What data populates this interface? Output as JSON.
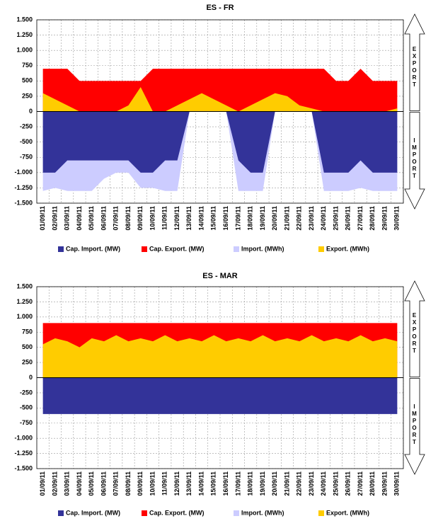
{
  "chart_data": [
    {
      "type": "area",
      "title": "ES - FR",
      "side_labels": [
        "EXPORT",
        "IMPORT"
      ],
      "grid": true,
      "categories": [
        "01/09/11",
        "02/09/11",
        "03/09/11",
        "04/09/11",
        "05/09/11",
        "06/09/11",
        "07/09/11",
        "08/09/11",
        "09/09/11",
        "10/09/11",
        "11/09/11",
        "12/09/11",
        "13/09/11",
        "14/09/11",
        "15/09/11",
        "16/09/11",
        "17/09/11",
        "18/09/11",
        "19/09/11",
        "20/09/11",
        "21/09/11",
        "22/09/11",
        "23/09/11",
        "24/09/11",
        "25/09/11",
        "26/09/11",
        "27/09/11",
        "28/09/11",
        "29/09/11",
        "30/09/11"
      ],
      "ylim": [
        -1500,
        1500
      ],
      "yticks": [
        {
          "value": -1500,
          "label": "-1.500"
        },
        {
          "value": -1250,
          "label": "-1.250"
        },
        {
          "value": -1000,
          "label": "-1.000"
        },
        -750,
        -500,
        -250,
        0,
        250,
        500,
        750,
        {
          "value": 1000,
          "label": "1.000"
        },
        {
          "value": 1250,
          "label": "1.250"
        },
        {
          "value": 1500,
          "label": "1.500"
        }
      ],
      "series": [
        {
          "name": "Cap. Import. (MW)",
          "color": "#333399",
          "values": [
            -1000,
            -1000,
            -800,
            -800,
            -800,
            -800,
            -800,
            -800,
            -1000,
            -1000,
            -800,
            -800,
            0,
            0,
            0,
            0,
            -800,
            -1000,
            -1000,
            0,
            0,
            0,
            0,
            -1000,
            -1000,
            -1000,
            -800,
            -1000,
            -1000,
            -1000
          ]
        },
        {
          "name": "Cap. Export. (MW)",
          "color": "#ff0000",
          "values": [
            700,
            700,
            700,
            500,
            500,
            500,
            500,
            500,
            500,
            700,
            700,
            700,
            700,
            700,
            700,
            700,
            700,
            700,
            700,
            700,
            700,
            700,
            700,
            700,
            500,
            500,
            700,
            500,
            500,
            500
          ]
        },
        {
          "name": "Import. (MWh)",
          "color": "#ccccff",
          "values": [
            -1300,
            -1250,
            -1300,
            -1300,
            -1300,
            -1100,
            -1000,
            -1000,
            -1250,
            -1250,
            -1300,
            -1300,
            0,
            0,
            0,
            0,
            -1300,
            -1300,
            -1300,
            0,
            0,
            0,
            0,
            -1300,
            -1300,
            -1300,
            -1250,
            -1300,
            -1300,
            -1300
          ]
        },
        {
          "name": "Export. (MWh)",
          "color": "#ffcc00",
          "values": [
            300,
            200,
            100,
            0,
            0,
            0,
            0,
            100,
            400,
            0,
            0,
            100,
            200,
            300,
            200,
            100,
            0,
            100,
            200,
            300,
            250,
            100,
            50,
            0,
            0,
            0,
            0,
            0,
            0,
            50
          ]
        }
      ]
    },
    {
      "type": "area",
      "title": "ES - MAR",
      "side_labels": [
        "EXPORT",
        "IMPORT"
      ],
      "grid": true,
      "categories": [
        "01/09/11",
        "02/09/11",
        "03/09/11",
        "04/09/11",
        "05/09/11",
        "06/09/11",
        "07/09/11",
        "08/09/11",
        "09/09/11",
        "10/09/11",
        "11/09/11",
        "12/09/11",
        "13/09/11",
        "14/09/11",
        "15/09/11",
        "16/09/11",
        "17/09/11",
        "18/09/11",
        "19/09/11",
        "20/09/11",
        "21/09/11",
        "22/09/11",
        "23/09/11",
        "24/09/11",
        "25/09/11",
        "26/09/11",
        "27/09/11",
        "28/09/11",
        "29/09/11",
        "30/09/11"
      ],
      "ylim": [
        -1500,
        1500
      ],
      "yticks": [
        {
          "value": -1500,
          "label": "-1.500"
        },
        {
          "value": -1250,
          "label": "-1.250"
        },
        {
          "value": -1000,
          "label": "-1.000"
        },
        -750,
        -500,
        -250,
        0,
        250,
        500,
        750,
        {
          "value": 1000,
          "label": "1.000"
        },
        {
          "value": 1250,
          "label": "1.250"
        },
        {
          "value": 1500,
          "label": "1.500"
        }
      ],
      "series": [
        {
          "name": "Cap. Import. (MW)",
          "color": "#333399",
          "values": [
            -600,
            -600,
            -600,
            -600,
            -600,
            -600,
            -600,
            -600,
            -600,
            -600,
            -600,
            -600,
            -600,
            -600,
            -600,
            -600,
            -600,
            -600,
            -600,
            -600,
            -600,
            -600,
            -600,
            -600,
            -600,
            -600,
            -600,
            -600,
            -600,
            -600
          ]
        },
        {
          "name": "Cap. Export. (MW)",
          "color": "#ff0000",
          "values": [
            900,
            900,
            900,
            900,
            900,
            900,
            900,
            900,
            900,
            900,
            900,
            900,
            900,
            900,
            900,
            900,
            900,
            900,
            900,
            900,
            900,
            900,
            900,
            900,
            900,
            900,
            900,
            900,
            900,
            900
          ]
        },
        {
          "name": "Import. (MWh)",
          "color": "#ccccff",
          "values": [
            0,
            0,
            0,
            0,
            0,
            0,
            0,
            0,
            0,
            0,
            0,
            0,
            0,
            0,
            0,
            0,
            0,
            0,
            0,
            0,
            0,
            0,
            0,
            0,
            0,
            0,
            0,
            0,
            0,
            0
          ]
        },
        {
          "name": "Export. (MWh)",
          "color": "#ffcc00",
          "values": [
            550,
            650,
            600,
            500,
            650,
            600,
            700,
            600,
            650,
            600,
            700,
            600,
            650,
            600,
            700,
            600,
            650,
            600,
            700,
            600,
            650,
            600,
            700,
            600,
            650,
            600,
            700,
            600,
            650,
            600
          ]
        }
      ]
    }
  ]
}
